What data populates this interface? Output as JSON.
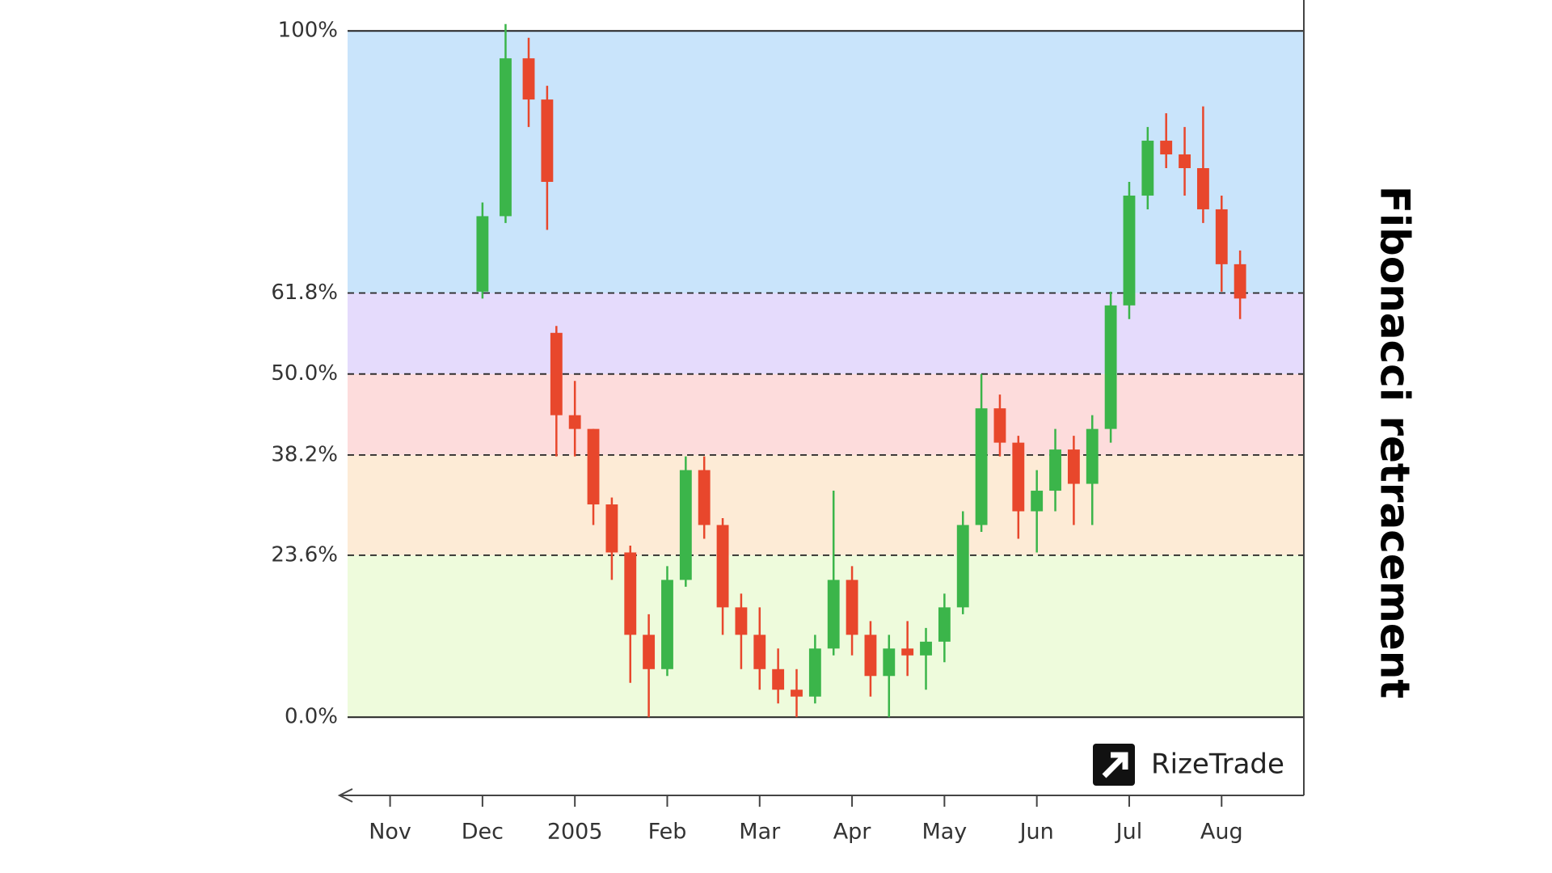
{
  "chart_data": {
    "type": "candlestick",
    "title": "Fibonacci retracement",
    "logo": "RizeTrade",
    "xlim": [
      -0.46,
      9.89
    ],
    "ylim": [
      -11.4,
      104.5
    ],
    "xticks": [
      {
        "value": 0,
        "label": "Nov"
      },
      {
        "value": 1,
        "label": "Dec"
      },
      {
        "value": 2,
        "label": "2005"
      },
      {
        "value": 3,
        "label": "Feb"
      },
      {
        "value": 4,
        "label": "Mar"
      },
      {
        "value": 5,
        "label": "Apr"
      },
      {
        "value": 6,
        "label": "May"
      },
      {
        "value": 7,
        "label": "Jun"
      },
      {
        "value": 8,
        "label": "Jul"
      },
      {
        "value": 9,
        "label": "Aug"
      }
    ],
    "yticks": [
      {
        "value": 0,
        "label": "0.0%"
      },
      {
        "value": 23.6,
        "label": "23.6%"
      },
      {
        "value": 38.2,
        "label": "38.2%"
      },
      {
        "value": 50,
        "label": "50.0%"
      },
      {
        "value": 61.8,
        "label": "61.8%"
      },
      {
        "value": 100,
        "label": "100%"
      }
    ],
    "zone_colors": [
      "#eefbdc",
      "#fdebd6",
      "#fddcdc",
      "#e5dbfc",
      "#c9e4fb"
    ],
    "up_color": "#3bb54a",
    "down_color": "#e8472c",
    "x": [
      1.0,
      1.25,
      1.5,
      1.7,
      1.8,
      2.0,
      2.2,
      2.4,
      2.6,
      2.8,
      3.0,
      3.2,
      3.4,
      3.6,
      3.8,
      4.0,
      4.2,
      4.4,
      4.6,
      4.8,
      5.0,
      5.2,
      5.4,
      5.6,
      5.8,
      6.0,
      6.2,
      6.4,
      6.6,
      6.8,
      7.0,
      7.2,
      7.4,
      7.6,
      7.8,
      8.0,
      8.2,
      8.4,
      8.6,
      8.8,
      9.0,
      9.2
    ],
    "open": [
      62,
      73,
      96,
      90,
      56,
      44,
      42,
      31,
      24,
      12,
      7,
      20,
      36,
      28,
      16,
      12,
      7,
      4,
      3,
      10,
      20,
      12,
      6,
      10,
      9,
      11,
      16,
      28,
      45,
      40,
      30,
      33,
      39,
      34,
      42,
      60,
      76,
      84,
      82,
      80,
      74,
      66
    ],
    "high": [
      75,
      101,
      99,
      92,
      57,
      49,
      42,
      32,
      25,
      15,
      22,
      38,
      38,
      29,
      18,
      16,
      10,
      7,
      12,
      33,
      22,
      14,
      12,
      14,
      13,
      18,
      30,
      50,
      47,
      41,
      36,
      42,
      41,
      44,
      62,
      78,
      86,
      88,
      86,
      89,
      76,
      68
    ],
    "low": [
      61,
      72,
      86,
      71,
      38,
      38,
      28,
      20,
      5,
      0,
      6,
      19,
      26,
      12,
      7,
      4,
      2,
      0,
      2,
      9,
      9,
      3,
      0,
      6,
      4,
      8,
      15,
      27,
      38,
      26,
      24,
      30,
      28,
      28,
      40,
      58,
      74,
      80,
      76,
      72,
      62,
      58
    ],
    "close": [
      73,
      96,
      90,
      78,
      44,
      42,
      31,
      24,
      12,
      7,
      20,
      36,
      28,
      16,
      12,
      7,
      4,
      3,
      10,
      20,
      12,
      6,
      10,
      9,
      11,
      16,
      28,
      45,
      40,
      30,
      33,
      39,
      34,
      42,
      60,
      76,
      84,
      82,
      80,
      74,
      66,
      61
    ]
  }
}
